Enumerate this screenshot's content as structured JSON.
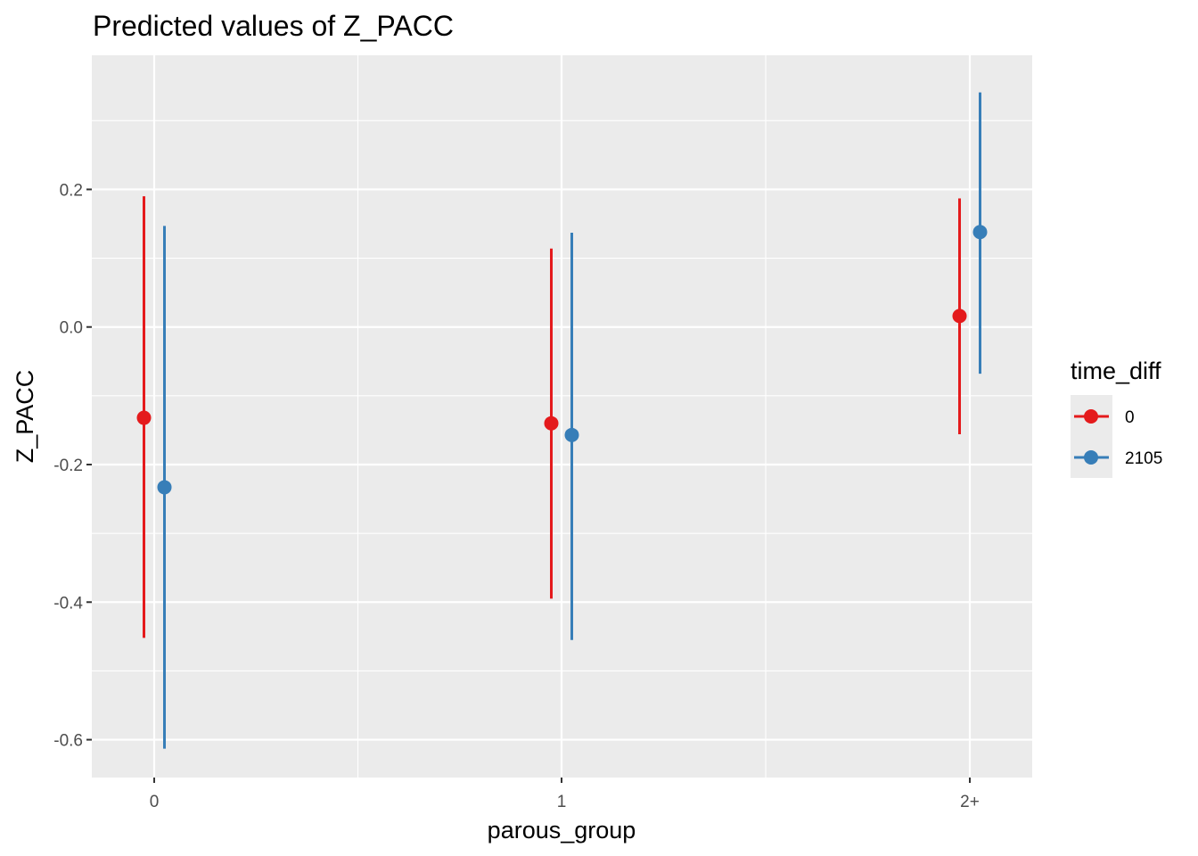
{
  "chart_data": {
    "type": "scatter",
    "title": "Predicted values of Z_PACC",
    "xlabel": "parous_group",
    "ylabel": "Z_PACC",
    "categories": [
      "0",
      "1",
      "2+"
    ],
    "ylim": [
      -0.655,
      0.395
    ],
    "yticks": [
      -0.6,
      -0.4,
      -0.2,
      0.0,
      0.2
    ],
    "ytick_labels": [
      "-0.6",
      "-0.4",
      "-0.2",
      "0.0",
      "0.2"
    ],
    "grid": true,
    "legend_position": "right",
    "legend_title": "time_diff",
    "series": [
      {
        "name": "0",
        "color": "#e41a1c",
        "values": [
          -0.132,
          -0.14,
          0.016
        ],
        "lower": [
          -0.452,
          -0.395,
          -0.156
        ],
        "upper": [
          0.19,
          0.114,
          0.187
        ]
      },
      {
        "name": "2105",
        "color": "#377eb8",
        "values": [
          -0.233,
          -0.157,
          0.138
        ],
        "lower": [
          -0.613,
          -0.455,
          -0.068
        ],
        "upper": [
          0.147,
          0.137,
          0.341
        ]
      }
    ]
  }
}
